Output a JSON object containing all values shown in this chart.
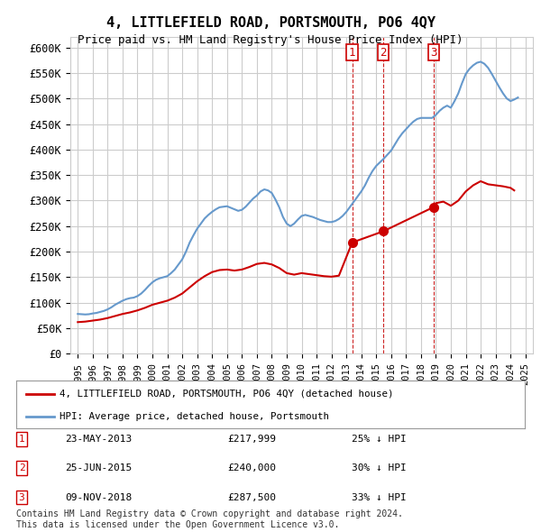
{
  "title": "4, LITTLEFIELD ROAD, PORTSMOUTH, PO6 4QY",
  "subtitle": "Price paid vs. HM Land Registry's House Price Index (HPI)",
  "ylabel": "",
  "ylim": [
    0,
    620000
  ],
  "yticks": [
    0,
    50000,
    100000,
    150000,
    200000,
    250000,
    300000,
    350000,
    400000,
    450000,
    500000,
    550000,
    600000
  ],
  "xlim_start": 1994.5,
  "xlim_end": 2025.5,
  "background_color": "#ffffff",
  "plot_bg_color": "#ffffff",
  "grid_color": "#cccccc",
  "hpi_color": "#6699cc",
  "price_color": "#cc0000",
  "sale_marker_color": "#cc0000",
  "sale_line_color": "#cc2222",
  "legend_house_label": "4, LITTLEFIELD ROAD, PORTSMOUTH, PO6 4QY (detached house)",
  "legend_hpi_label": "HPI: Average price, detached house, Portsmouth",
  "sale_events": [
    {
      "num": 1,
      "date": "23-MAY-2013",
      "price": 217999,
      "pct": "25%",
      "x": 2013.39
    },
    {
      "num": 2,
      "date": "25-JUN-2015",
      "price": 240000,
      "pct": "30%",
      "x": 2015.48
    },
    {
      "num": 3,
      "date": "09-NOV-2018",
      "price": 287500,
      "pct": "33%",
      "x": 2018.86
    }
  ],
  "footnote": "Contains HM Land Registry data © Crown copyright and database right 2024.\nThis data is licensed under the Open Government Licence v3.0.",
  "hpi_data": {
    "years": [
      1995,
      1995.25,
      1995.5,
      1995.75,
      1996,
      1996.25,
      1996.5,
      1996.75,
      1997,
      1997.25,
      1997.5,
      1997.75,
      1998,
      1998.25,
      1998.5,
      1998.75,
      1999,
      1999.25,
      1999.5,
      1999.75,
      2000,
      2000.25,
      2000.5,
      2000.75,
      2001,
      2001.25,
      2001.5,
      2001.75,
      2002,
      2002.25,
      2002.5,
      2002.75,
      2003,
      2003.25,
      2003.5,
      2003.75,
      2004,
      2004.25,
      2004.5,
      2004.75,
      2005,
      2005.25,
      2005.5,
      2005.75,
      2006,
      2006.25,
      2006.5,
      2006.75,
      2007,
      2007.25,
      2007.5,
      2007.75,
      2008,
      2008.25,
      2008.5,
      2008.75,
      2009,
      2009.25,
      2009.5,
      2009.75,
      2010,
      2010.25,
      2010.5,
      2010.75,
      2011,
      2011.25,
      2011.5,
      2011.75,
      2012,
      2012.25,
      2012.5,
      2012.75,
      2013,
      2013.25,
      2013.5,
      2013.75,
      2014,
      2014.25,
      2014.5,
      2014.75,
      2015,
      2015.25,
      2015.5,
      2015.75,
      2016,
      2016.25,
      2016.5,
      2016.75,
      2017,
      2017.25,
      2017.5,
      2017.75,
      2018,
      2018.25,
      2018.5,
      2018.75,
      2019,
      2019.25,
      2019.5,
      2019.75,
      2020,
      2020.25,
      2020.5,
      2020.75,
      2021,
      2021.25,
      2021.5,
      2021.75,
      2022,
      2022.25,
      2022.5,
      2022.75,
      2023,
      2023.25,
      2023.5,
      2023.75,
      2024,
      2024.25,
      2024.5
    ],
    "values": [
      78000,
      77500,
      77000,
      77500,
      79000,
      80000,
      82000,
      84000,
      87000,
      91000,
      96000,
      100000,
      104000,
      107000,
      109000,
      110000,
      113000,
      118000,
      125000,
      133000,
      140000,
      145000,
      148000,
      150000,
      152000,
      158000,
      165000,
      175000,
      185000,
      200000,
      218000,
      232000,
      245000,
      255000,
      265000,
      272000,
      278000,
      283000,
      287000,
      288000,
      289000,
      286000,
      283000,
      280000,
      282000,
      288000,
      296000,
      304000,
      310000,
      318000,
      322000,
      320000,
      315000,
      302000,
      287000,
      268000,
      255000,
      250000,
      255000,
      263000,
      270000,
      272000,
      270000,
      268000,
      265000,
      262000,
      260000,
      258000,
      258000,
      260000,
      264000,
      270000,
      278000,
      288000,
      298000,
      308000,
      318000,
      330000,
      345000,
      358000,
      368000,
      375000,
      382000,
      390000,
      398000,
      410000,
      422000,
      432000,
      440000,
      448000,
      455000,
      460000,
      462000,
      462000,
      462000,
      462000,
      468000,
      476000,
      482000,
      486000,
      482000,
      495000,
      510000,
      530000,
      548000,
      558000,
      565000,
      570000,
      572000,
      568000,
      560000,
      548000,
      535000,
      522000,
      510000,
      500000,
      495000,
      498000,
      502000
    ]
  },
  "price_data": {
    "years": [
      1995,
      1995.5,
      1996,
      1996.5,
      1997,
      1997.5,
      1998,
      1998.5,
      1999,
      1999.5,
      2000,
      2000.5,
      2001,
      2001.5,
      2002,
      2002.5,
      2003,
      2003.5,
      2004,
      2004.5,
      2005,
      2005.5,
      2006,
      2006.5,
      2007,
      2007.5,
      2008,
      2008.5,
      2009,
      2009.5,
      2010,
      2010.5,
      2011,
      2011.5,
      2012,
      2012.5,
      2013.39,
      2015.48,
      2018.86,
      2019,
      2019.5,
      2020,
      2020.5,
      2021,
      2021.5,
      2022,
      2022.5,
      2023,
      2023.5,
      2024,
      2024.25
    ],
    "values": [
      62000,
      63000,
      65000,
      67000,
      70000,
      74000,
      78000,
      81000,
      85000,
      90000,
      96000,
      100000,
      104000,
      110000,
      118000,
      130000,
      142000,
      152000,
      160000,
      164000,
      165000,
      163000,
      165000,
      170000,
      176000,
      178000,
      175000,
      168000,
      158000,
      155000,
      158000,
      156000,
      154000,
      152000,
      151000,
      153000,
      217999,
      240000,
      287500,
      295000,
      298000,
      290000,
      300000,
      318000,
      330000,
      338000,
      332000,
      330000,
      328000,
      325000,
      320000
    ]
  }
}
